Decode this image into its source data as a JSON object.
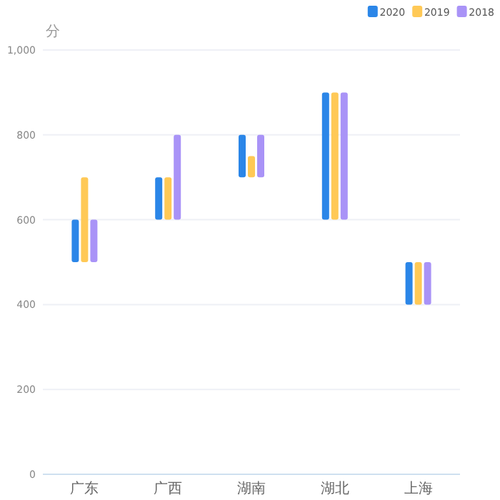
{
  "chart_data": {
    "type": "bar",
    "ylabel": "分",
    "categories": [
      "广东",
      "广西",
      "湖南",
      "湖北",
      "上海"
    ],
    "series": [
      {
        "name": "2020",
        "color": "#2b86e8",
        "base": [
          500,
          600,
          700,
          600,
          400
        ],
        "values": [
          100,
          100,
          100,
          300,
          100
        ]
      },
      {
        "name": "2019",
        "color": "#ffc956",
        "base": [
          500,
          600,
          700,
          600,
          400
        ],
        "values": [
          200,
          100,
          50,
          300,
          100
        ]
      },
      {
        "name": "2018",
        "color": "#a993f7",
        "base": [
          500,
          600,
          700,
          600,
          400
        ],
        "values": [
          100,
          200,
          100,
          300,
          100
        ]
      }
    ],
    "ylim": [
      0,
      1000
    ],
    "yticks": [
      0,
      200,
      400,
      600,
      800,
      {
        "value": 1000,
        "label": "1,000"
      }
    ],
    "grid": "y",
    "legend": "top right"
  }
}
